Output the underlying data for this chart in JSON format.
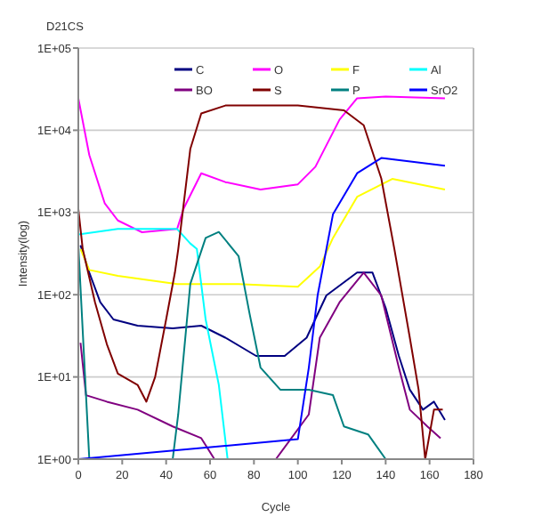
{
  "chart_data": {
    "type": "line",
    "title": "D21CS",
    "xlabel": "Cycle",
    "ylabel": "Intensity(log)",
    "log": "y",
    "grid": "y",
    "legend": "top right",
    "xlim": [
      0,
      180
    ],
    "xticks": [
      0,
      20,
      40,
      60,
      80,
      100,
      120,
      140,
      160,
      180
    ],
    "ylim": [
      1,
      100000
    ],
    "yticks": [
      {
        "value": 1,
        "label": "1E+00"
      },
      {
        "value": 10,
        "label": "1E+01"
      },
      {
        "value": 100,
        "label": "1E+02"
      },
      {
        "value": 1000,
        "label": "1E+03"
      },
      {
        "value": 10000,
        "label": "1E+04"
      },
      {
        "value": 100000,
        "label": "1E+05"
      }
    ],
    "series": [
      {
        "name": "C",
        "color": "#000080",
        "x": [
          1,
          5,
          10,
          16,
          27,
          43,
          56,
          67,
          81,
          94,
          104,
          113,
          127,
          134,
          140,
          146,
          151,
          157,
          162,
          167
        ],
        "values": [
          400,
          186,
          81,
          50,
          42,
          39,
          42,
          30,
          18,
          18,
          30,
          98,
          186,
          186,
          69,
          18,
          7,
          4,
          5,
          3
        ]
      },
      {
        "name": "O",
        "color": "#ff00ff",
        "x": [
          0,
          5,
          12,
          18,
          29,
          45,
          48,
          56,
          67,
          83,
          100,
          108,
          119,
          127,
          140,
          167
        ],
        "values": [
          24500,
          5000,
          1300,
          800,
          575,
          630,
          1120,
          3000,
          2340,
          1900,
          2200,
          3600,
          13500,
          24500,
          25700,
          24500
        ]
      },
      {
        "name": "F",
        "color": "#ffff00",
        "x": [
          1,
          5,
          18,
          45,
          73,
          100,
          110,
          116,
          127,
          143,
          167
        ],
        "values": [
          360,
          200,
          170,
          135,
          135,
          125,
          220,
          490,
          1550,
          2560,
          1900
        ]
      },
      {
        "name": "Al",
        "color": "#00ffff",
        "x": [
          0,
          18,
          45,
          51,
          54,
          58,
          64,
          68
        ],
        "values": [
          540,
          630,
          630,
          420,
          360,
          50,
          8,
          1
        ]
      },
      {
        "name": "BO",
        "color": "#800080",
        "x": [
          1,
          3.5,
          13,
          27,
          43,
          56,
          62,
          90,
          105,
          110,
          119,
          130,
          138,
          146,
          151,
          159,
          165
        ],
        "values": [
          26,
          6,
          5,
          4,
          2.5,
          1.8,
          1,
          1,
          3.5,
          30,
          81,
          186,
          98,
          13,
          4,
          2.5,
          1.8
        ]
      },
      {
        "name": "S",
        "color": "#800000",
        "x": [
          0,
          2,
          7.6,
          13,
          18,
          27,
          31,
          35,
          40,
          44,
          45.5,
          51,
          56,
          67,
          100,
          121,
          130,
          138,
          144,
          151,
          155,
          158,
          162,
          166
        ],
        "values": [
          1100,
          360,
          81,
          25,
          11,
          8,
          5,
          10,
          50,
          186,
          355,
          5900,
          16000,
          20000,
          20000,
          17500,
          11500,
          2600,
          355,
          30,
          7,
          1,
          4,
          4
        ]
      },
      {
        "name": "P",
        "color": "#008080",
        "x": [
          0,
          5,
          43,
          45.5,
          51,
          58,
          64,
          73,
          78,
          83,
          92,
          105,
          116,
          121,
          132,
          140
        ],
        "values": [
          400,
          1,
          1,
          3.5,
          135,
          490,
          580,
          295,
          59,
          13,
          7,
          7,
          6,
          2.5,
          2,
          1
        ]
      },
      {
        "name": "SrO2",
        "color": "#0000ff",
        "x": [
          0,
          100,
          105,
          109,
          116,
          127,
          138,
          167
        ],
        "values": [
          1,
          1.75,
          13,
          98,
          950,
          3000,
          4600,
          3700
        ]
      }
    ]
  }
}
